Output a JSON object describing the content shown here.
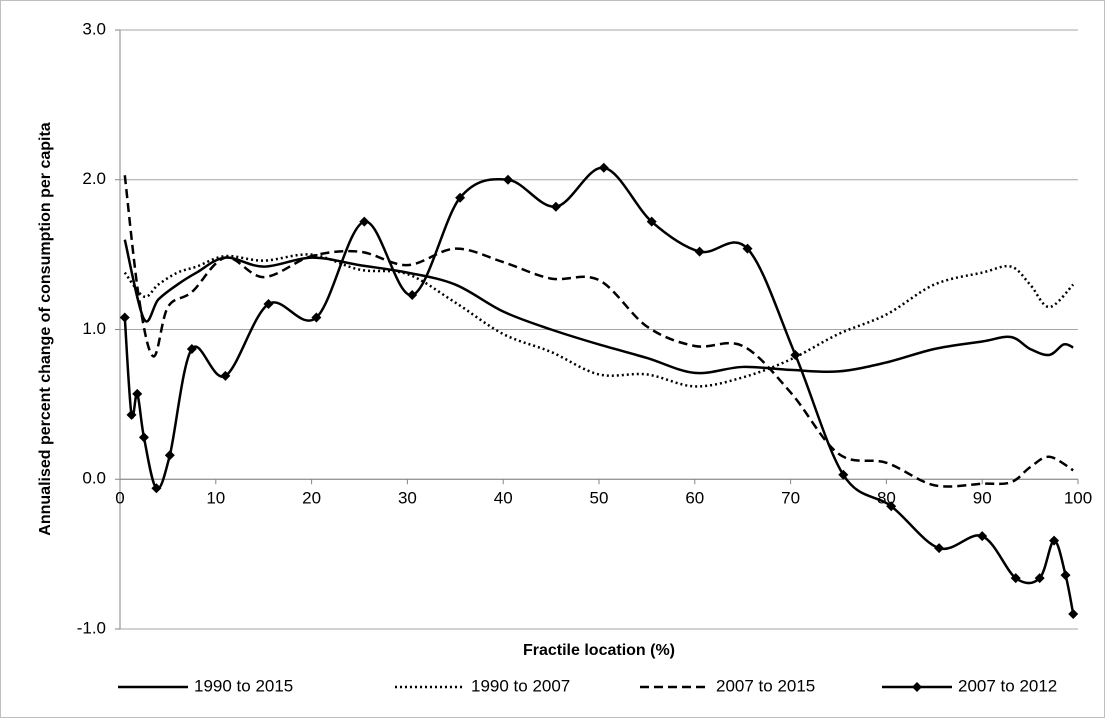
{
  "chart_data": {
    "type": "line",
    "xlabel": "Fractile location (%)",
    "ylabel": "Annualised percent change of  consumption per capita",
    "xlim": [
      0,
      100
    ],
    "xticks": [
      0,
      10,
      20,
      30,
      40,
      50,
      60,
      70,
      80,
      90,
      100
    ],
    "ylim": [
      -1,
      3
    ],
    "yticks": [
      {
        "value": -1,
        "label": "-1.0"
      },
      {
        "value": 0,
        "label": "0.0"
      },
      {
        "value": 1,
        "label": "1.0"
      },
      {
        "value": 2,
        "label": "2.0"
      },
      {
        "value": 3,
        "label": "3.0"
      }
    ],
    "grid": true,
    "legend": "bottom",
    "series": [
      {
        "name": "1990 to 2015",
        "color": "#000000",
        "style": "solid",
        "x": [
          0.5,
          2.5,
          4,
          6,
          8,
          11,
          15,
          20,
          25,
          30,
          35,
          40,
          45,
          50,
          55,
          60,
          65,
          70,
          75,
          80,
          85,
          90,
          93,
          95,
          97,
          98.5,
          99.5
        ],
        "values": [
          1.6,
          1.07,
          1.2,
          1.3,
          1.38,
          1.48,
          1.42,
          1.48,
          1.43,
          1.38,
          1.3,
          1.12,
          1.0,
          0.9,
          0.81,
          0.71,
          0.75,
          0.73,
          0.72,
          0.78,
          0.87,
          0.92,
          0.95,
          0.87,
          0.83,
          0.9,
          0.88
        ]
      },
      {
        "name": "1990 to 2007",
        "color": "#000000",
        "style": "dotted",
        "x": [
          0.5,
          2.5,
          4,
          6,
          8,
          11,
          15,
          20,
          25,
          30,
          35,
          40,
          45,
          50,
          55,
          60,
          65,
          70,
          75,
          80,
          85,
          90,
          93,
          95,
          97,
          99.5
        ],
        "values": [
          1.38,
          1.22,
          1.3,
          1.38,
          1.42,
          1.49,
          1.46,
          1.5,
          1.4,
          1.37,
          1.18,
          0.97,
          0.85,
          0.7,
          0.7,
          0.62,
          0.68,
          0.8,
          0.97,
          1.1,
          1.3,
          1.38,
          1.42,
          1.3,
          1.15,
          1.3
        ]
      },
      {
        "name": "2007 to 2015",
        "color": "#000000",
        "style": "dashed",
        "x": [
          0.5,
          2,
          3.5,
          5,
          7.5,
          11,
          15,
          20,
          25,
          30,
          35,
          40,
          45,
          50,
          55,
          60,
          65,
          70,
          75,
          80,
          85,
          90,
          93,
          95,
          97,
          99.5
        ],
        "values": [
          2.03,
          1.2,
          0.82,
          1.15,
          1.25,
          1.48,
          1.35,
          1.49,
          1.52,
          1.43,
          1.54,
          1.45,
          1.34,
          1.33,
          1.02,
          0.89,
          0.89,
          0.58,
          0.17,
          0.11,
          -0.04,
          -0.03,
          -0.02,
          0.08,
          0.15,
          0.06
        ]
      },
      {
        "name": "2007 to 2012",
        "color": "#000000",
        "style": "solid",
        "marker": "diamond",
        "x": [
          0.5,
          1.2,
          1.8,
          2.5,
          3.8,
          5.2,
          7.5,
          11,
          15.5,
          20.5,
          25.5,
          30.5,
          35.5,
          40.5,
          45.5,
          50.5,
          55.5,
          60.5,
          65.5,
          70.5,
          75.5,
          80.5,
          85.5,
          90,
          93.5,
          96,
          97.5,
          98.7,
          99.5
        ],
        "values": [
          1.08,
          0.43,
          0.57,
          0.28,
          -0.06,
          0.16,
          0.87,
          0.69,
          1.17,
          1.08,
          1.72,
          1.23,
          1.88,
          2.0,
          1.82,
          2.08,
          1.72,
          1.52,
          1.54,
          0.83,
          0.03,
          -0.18,
          -0.46,
          -0.38,
          -0.66,
          -0.66,
          -0.41,
          -0.64,
          -0.9
        ]
      }
    ]
  }
}
